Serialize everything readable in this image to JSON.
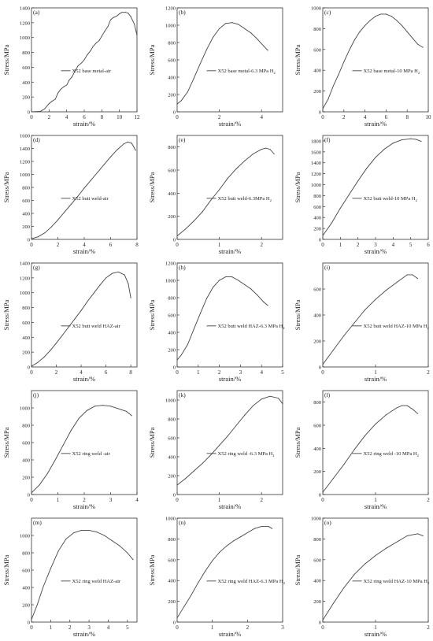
{
  "chart_data": [
    {
      "id": "a",
      "type": "line",
      "panel_label": "(a)",
      "legend": "X52 base metal-air",
      "xlabel": "strain/%",
      "ylabel": "Stress/MPa",
      "xlim": [
        0,
        12
      ],
      "ylim": [
        0,
        1400
      ],
      "xticks": [
        "0",
        "2",
        "4",
        "6",
        "8",
        "10",
        "12"
      ],
      "yticks": [
        "0",
        "200",
        "400",
        "600",
        "800",
        "1000",
        "1200",
        "1400"
      ],
      "x": [
        0,
        1,
        1.5,
        2,
        2.3,
        2.7,
        3,
        3.3,
        3.7,
        4,
        4.3,
        4.6,
        5,
        5.3,
        5.7,
        6,
        6.3,
        6.7,
        7,
        7.3,
        7.7,
        8,
        8.3,
        8.7,
        9,
        9.3,
        9.7,
        10,
        10.3,
        10.7,
        11,
        11.3,
        11.7,
        12
      ],
      "y": [
        0,
        5,
        40,
        110,
        140,
        170,
        250,
        300,
        340,
        360,
        430,
        470,
        560,
        620,
        660,
        700,
        760,
        820,
        880,
        920,
        960,
        1020,
        1080,
        1150,
        1240,
        1270,
        1290,
        1320,
        1340,
        1340,
        1330,
        1280,
        1180,
        1030
      ]
    },
    {
      "id": "b",
      "type": "line",
      "panel_label": "(b)",
      "legend": "X52 base metal-6.3 MPa H",
      "legend_sub": "2",
      "xlabel": "strain/%",
      "ylabel": "Stress/MPa",
      "xlim": [
        0,
        5
      ],
      "ylim": [
        0,
        1200
      ],
      "xticks": [
        "0",
        "2",
        "4"
      ],
      "yticks": [
        "0",
        "200",
        "400",
        "600",
        "800",
        "1000",
        "1200"
      ],
      "x": [
        0,
        0.2,
        0.5,
        0.8,
        1.1,
        1.4,
        1.7,
        2,
        2.3,
        2.6,
        2.9,
        3.2,
        3.5,
        3.8,
        4.1,
        4.3
      ],
      "y": [
        90,
        130,
        230,
        390,
        560,
        720,
        860,
        960,
        1020,
        1030,
        1010,
        960,
        910,
        840,
        760,
        710
      ]
    },
    {
      "id": "c",
      "type": "line",
      "panel_label": "(c)",
      "legend": "X52 base metal-10 MPa H",
      "legend_sub": "2",
      "xlabel": "strain/%",
      "ylabel": "Stress/MPa",
      "xlim": [
        0,
        10
      ],
      "ylim": [
        0,
        1000
      ],
      "xticks": [
        "0",
        "2",
        "4",
        "6",
        "8",
        "10"
      ],
      "yticks": [
        "0",
        "200",
        "400",
        "600",
        "800",
        "1000"
      ],
      "x": [
        0,
        0.5,
        1,
        1.5,
        2,
        2.5,
        3,
        3.5,
        4,
        4.5,
        5,
        5.5,
        6,
        6.5,
        7,
        7.5,
        8,
        8.5,
        9,
        9.5
      ],
      "y": [
        30,
        120,
        250,
        360,
        480,
        590,
        690,
        770,
        830,
        880,
        920,
        940,
        940,
        920,
        880,
        830,
        770,
        710,
        650,
        620
      ]
    },
    {
      "id": "d",
      "type": "line",
      "panel_label": "(d)",
      "legend": "X52 butt weld-air",
      "xlabel": "strain/%",
      "ylabel": "Stress/MPa",
      "xlim": [
        0,
        8
      ],
      "ylim": [
        0,
        1600
      ],
      "xticks": [
        "0",
        "2",
        "4",
        "6",
        "8"
      ],
      "yticks": [
        "0",
        "200",
        "400",
        "600",
        "800",
        "1000",
        "1200",
        "1400",
        "1600"
      ],
      "x": [
        0,
        0.5,
        1,
        1.5,
        2,
        2.5,
        3,
        3.5,
        4,
        4.5,
        5,
        5.5,
        6,
        6.5,
        7,
        7.3,
        7.6,
        7.9
      ],
      "y": [
        10,
        40,
        100,
        190,
        300,
        420,
        540,
        660,
        790,
        910,
        1030,
        1150,
        1270,
        1380,
        1470,
        1500,
        1480,
        1370
      ]
    },
    {
      "id": "e",
      "type": "line",
      "panel_label": "(e)",
      "legend": "X52 butt weld-6.3MPa H",
      "legend_sub": "2",
      "xlabel": "strain/%",
      "ylabel": "Stress/MPa",
      "xlim": [
        0,
        2.5
      ],
      "ylim": [
        0,
        900
      ],
      "xticks": [
        "0",
        "1",
        "2"
      ],
      "yticks": [
        "0",
        "200",
        "400",
        "600",
        "800"
      ],
      "x": [
        0,
        0.2,
        0.4,
        0.6,
        0.8,
        1,
        1.2,
        1.4,
        1.6,
        1.8,
        2,
        2.1,
        2.2,
        2.3
      ],
      "y": [
        30,
        90,
        160,
        240,
        340,
        430,
        530,
        610,
        680,
        740,
        780,
        790,
        780,
        740
      ]
    },
    {
      "id": "f",
      "type": "line",
      "panel_label": "(f)",
      "legend": "X52 butt weld-10 MPa H",
      "legend_sub": "2",
      "xlabel": "strain/%",
      "ylabel": "Stress/MPa",
      "xlim": [
        0,
        6
      ],
      "ylim": [
        0,
        1900
      ],
      "xticks": [
        "0",
        "1",
        "2",
        "3",
        "4",
        "5",
        "6"
      ],
      "yticks": [
        "0",
        "200",
        "400",
        "600",
        "800",
        "1000",
        "1200",
        "1400",
        "1600",
        "1800"
      ],
      "x": [
        0,
        0.5,
        1,
        1.5,
        2,
        2.5,
        3,
        3.5,
        4,
        4.5,
        5,
        5.3,
        5.6
      ],
      "y": [
        70,
        300,
        570,
        820,
        1070,
        1300,
        1500,
        1650,
        1760,
        1820,
        1840,
        1830,
        1790
      ]
    },
    {
      "id": "g",
      "type": "line",
      "panel_label": "(g)",
      "legend": "X52 butt weld HAZ-air",
      "xlabel": "strain/%",
      "ylabel": "Stress/MPa",
      "xlim": [
        0,
        8.5
      ],
      "ylim": [
        0,
        1400
      ],
      "xticks": [
        "0",
        "2",
        "4",
        "6",
        "8"
      ],
      "yticks": [
        "0",
        "200",
        "400",
        "600",
        "800",
        "1000",
        "1200",
        "1400"
      ],
      "x": [
        0,
        0.5,
        1,
        1.5,
        2,
        2.5,
        3,
        3.5,
        4,
        4.5,
        5,
        5.5,
        6,
        6.5,
        7,
        7.5,
        7.8,
        8
      ],
      "y": [
        10,
        60,
        130,
        220,
        320,
        430,
        540,
        650,
        760,
        880,
        990,
        1100,
        1200,
        1260,
        1280,
        1240,
        1120,
        930
      ]
    },
    {
      "id": "h",
      "type": "line",
      "panel_label": "(h)",
      "legend": "X52 butt weld HAZ-6.3 MPa H",
      "legend_sub": "2",
      "xlabel": "strain/%",
      "ylabel": "Stress/MPa",
      "xlim": [
        0,
        5
      ],
      "ylim": [
        0,
        1200
      ],
      "xticks": [
        "0",
        "1",
        "2",
        "3",
        "4",
        "5"
      ],
      "yticks": [
        "0",
        "200",
        "400",
        "600",
        "800",
        "1000",
        "1200"
      ],
      "x": [
        0,
        0.2,
        0.5,
        0.8,
        1.1,
        1.4,
        1.7,
        2,
        2.3,
        2.6,
        2.9,
        3.2,
        3.5,
        3.8,
        4.1,
        4.3
      ],
      "y": [
        80,
        140,
        260,
        440,
        620,
        790,
        920,
        1000,
        1040,
        1040,
        1000,
        950,
        900,
        830,
        750,
        710
      ]
    },
    {
      "id": "i",
      "type": "line",
      "panel_label": "(i)",
      "legend": "X52 butt weld HAZ-10 MPa H",
      "legend_sub": "2",
      "xlabel": "strain/%",
      "ylabel": "Stress/MPa",
      "xlim": [
        0,
        2
      ],
      "ylim": [
        0,
        800
      ],
      "xticks": [
        "0",
        "1",
        "2"
      ],
      "yticks": [
        "0",
        "200",
        "400",
        "600"
      ],
      "x": [
        0,
        0.2,
        0.4,
        0.6,
        0.8,
        1,
        1.2,
        1.4,
        1.6,
        1.7,
        1.8
      ],
      "y": [
        20,
        130,
        240,
        340,
        440,
        520,
        590,
        650,
        710,
        710,
        680
      ]
    },
    {
      "id": "j",
      "type": "line",
      "panel_label": "(j)",
      "legend": "X52 ring weld -air",
      "xlabel": "strain/%",
      "ylabel": "Stress/MPa",
      "xlim": [
        0,
        4
      ],
      "ylim": [
        0,
        1200
      ],
      "xticks": [
        "0",
        "1",
        "2",
        "3",
        "4"
      ],
      "yticks": [
        "0",
        "200",
        "400",
        "600",
        "800",
        "1000"
      ],
      "x": [
        0,
        0.3,
        0.6,
        0.9,
        1.2,
        1.5,
        1.8,
        2.1,
        2.4,
        2.7,
        3,
        3.3,
        3.6,
        3.8
      ],
      "y": [
        20,
        110,
        240,
        400,
        570,
        740,
        880,
        970,
        1020,
        1030,
        1020,
        990,
        960,
        910
      ]
    },
    {
      "id": "k",
      "type": "line",
      "panel_label": "(k)",
      "legend": "X52 ring weld -6.3 MPa H",
      "legend_sub": "2",
      "xlabel": "strain/%",
      "ylabel": "Stress/MPa",
      "xlim": [
        0,
        2.5
      ],
      "ylim": [
        0,
        1100
      ],
      "xticks": [
        "0",
        "1",
        "2"
      ],
      "yticks": [
        "0",
        "200",
        "400",
        "600",
        "800",
        "1000"
      ],
      "x": [
        0,
        0.2,
        0.4,
        0.6,
        0.8,
        1,
        1.2,
        1.4,
        1.6,
        1.8,
        2,
        2.2,
        2.4,
        2.5
      ],
      "y": [
        100,
        170,
        250,
        330,
        420,
        520,
        620,
        730,
        840,
        940,
        1010,
        1040,
        1020,
        960
      ]
    },
    {
      "id": "l",
      "type": "line",
      "panel_label": "(l)",
      "legend": "X52 ring weld -10 MPa H",
      "legend_sub": "2",
      "xlabel": "strain/%",
      "ylabel": "Stress/MPa",
      "xlim": [
        0,
        2
      ],
      "ylim": [
        0,
        900
      ],
      "xticks": [
        "0",
        "1",
        "2"
      ],
      "yticks": [
        "0",
        "200",
        "400",
        "600",
        "800"
      ],
      "x": [
        0,
        0.2,
        0.4,
        0.6,
        0.8,
        1,
        1.2,
        1.4,
        1.5,
        1.6,
        1.7,
        1.8
      ],
      "y": [
        20,
        140,
        260,
        390,
        510,
        610,
        690,
        750,
        770,
        770,
        740,
        700
      ]
    },
    {
      "id": "m",
      "type": "line",
      "panel_label": "(m)",
      "legend": "X52 ring weld HAZ-air",
      "xlabel": "strain/%",
      "ylabel": "Stress/MPa",
      "xlim": [
        0,
        5.5
      ],
      "ylim": [
        0,
        1200
      ],
      "xticks": [
        "0",
        "1",
        "2",
        "3",
        "4",
        "5"
      ],
      "yticks": [
        "0",
        "200",
        "400",
        "600",
        "800",
        "1000"
      ],
      "x": [
        0,
        0.3,
        0.6,
        1,
        1.4,
        1.8,
        2.2,
        2.6,
        3,
        3.4,
        3.8,
        4.2,
        4.6,
        5,
        5.3
      ],
      "y": [
        30,
        200,
        400,
        620,
        820,
        960,
        1030,
        1060,
        1060,
        1040,
        1000,
        940,
        880,
        800,
        720
      ]
    },
    {
      "id": "n",
      "type": "line",
      "panel_label": "(n)",
      "legend": "X52 ring weld HAZ-6.3 MPa H",
      "legend_sub": "2",
      "xlabel": "strain/%",
      "ylabel": "Stress/MPa",
      "xlim": [
        0,
        3
      ],
      "ylim": [
        0,
        1000
      ],
      "xticks": [
        "0",
        "1",
        "2",
        "3"
      ],
      "yticks": [
        "0",
        "200",
        "400",
        "600",
        "800",
        "1000"
      ],
      "x": [
        0,
        0.2,
        0.4,
        0.6,
        0.8,
        1,
        1.2,
        1.4,
        1.6,
        1.8,
        2,
        2.2,
        2.4,
        2.6,
        2.7
      ],
      "y": [
        40,
        150,
        260,
        380,
        490,
        590,
        670,
        730,
        780,
        820,
        860,
        900,
        920,
        920,
        900
      ]
    },
    {
      "id": "o",
      "type": "line",
      "panel_label": "(o)",
      "legend": "X52 ring weld HAZ-10 MPa H",
      "legend_sub": "2",
      "xlabel": "strain/%",
      "ylabel": "Stress/MPa",
      "xlim": [
        0,
        2
      ],
      "ylim": [
        0,
        1000
      ],
      "xticks": [
        "0",
        "1",
        "2"
      ],
      "yticks": [
        "0",
        "200",
        "400",
        "600",
        "800",
        "1000"
      ],
      "x": [
        0,
        0.2,
        0.4,
        0.6,
        0.8,
        1,
        1.2,
        1.4,
        1.6,
        1.8,
        1.9
      ],
      "y": [
        20,
        180,
        330,
        460,
        560,
        640,
        710,
        770,
        830,
        850,
        830
      ]
    }
  ]
}
